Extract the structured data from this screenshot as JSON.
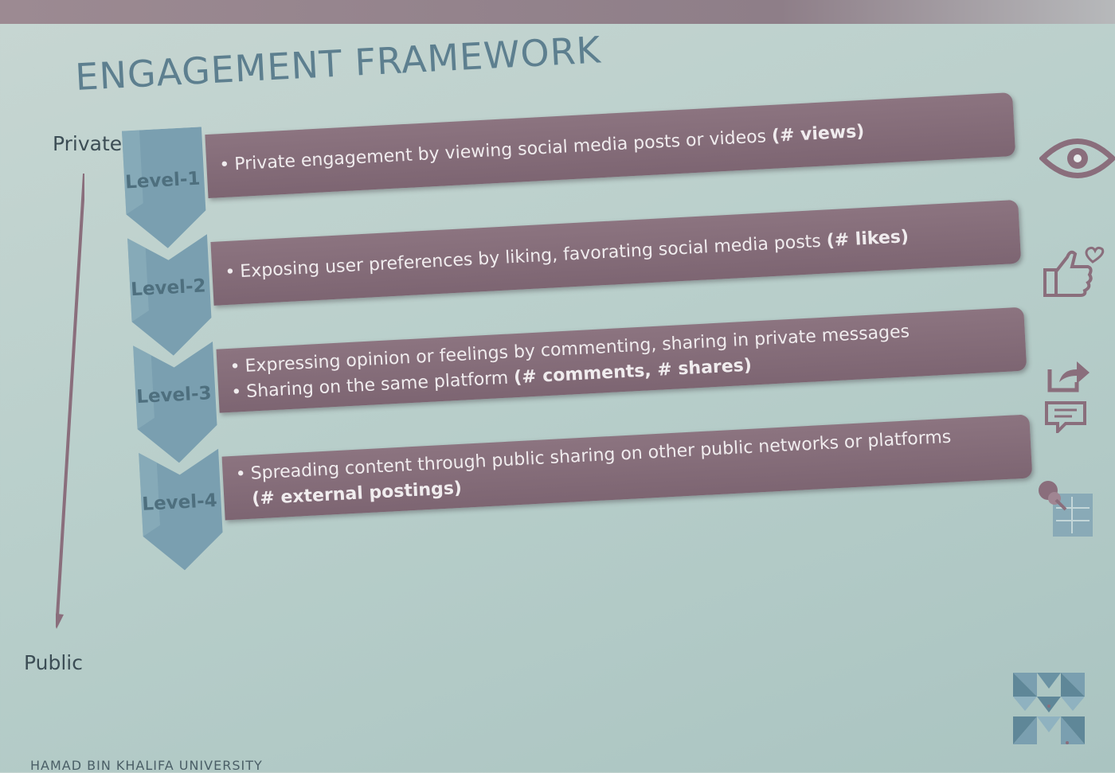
{
  "slide": {
    "title": "ENGAGEMENT FRAMEWORK",
    "axis": {
      "top_label": "Private",
      "bottom_label": "Public"
    },
    "levels": [
      {
        "label": "Level-1",
        "lines": [
          {
            "text": "Private engagement by viewing social media posts or videos ",
            "metric": "(# views)"
          }
        ],
        "icon": "eye-icon"
      },
      {
        "label": "Level-2",
        "lines": [
          {
            "text": "Exposing user preferences by liking, favorating social media posts ",
            "metric": "(# likes)"
          }
        ],
        "icon": "thumbs-up-heart-icon"
      },
      {
        "label": "Level-3",
        "lines": [
          {
            "text": "Expressing opinion or feelings by commenting, sharing in private messages",
            "metric": ""
          },
          {
            "text": "Sharing on the same platform ",
            "metric": "(# comments, # shares)"
          }
        ],
        "icon": "share-comment-icon"
      },
      {
        "label": "Level-4",
        "lines": [
          {
            "text": "Spreading content through public sharing on other public networks or platforms",
            "metric": ""
          },
          {
            "text": "",
            "metric": "(# external postings)"
          }
        ],
        "icon": "pin-board-icon"
      }
    ],
    "footer": "HAMAD BIN KHALIFA UNIVERSITY",
    "colors": {
      "bar": "#7d6572",
      "chevron": "#7a9fb0",
      "title": "#5d7f8f",
      "background": "#bcd1cd"
    }
  }
}
